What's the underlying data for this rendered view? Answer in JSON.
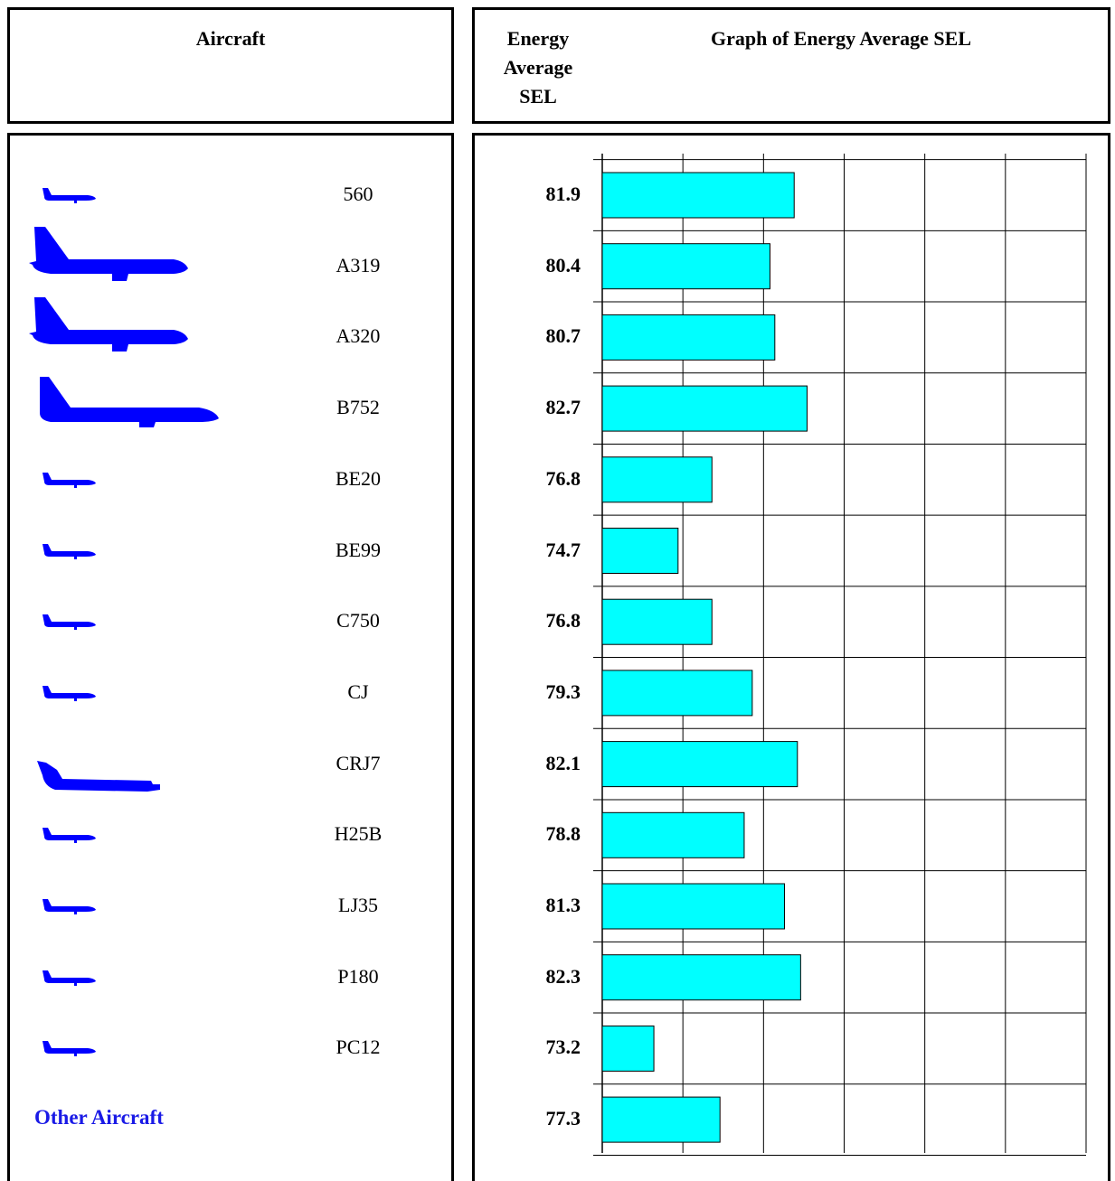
{
  "headers": {
    "aircraft": "Aircraft",
    "energy": [
      "Energy",
      "Average",
      "SEL"
    ],
    "graph": "Graph of Energy Average SEL"
  },
  "other_label": "Other Aircraft",
  "colors": {
    "bar": "#00ffff",
    "plane": "#0000ff",
    "other_label": "#1a1ae6"
  },
  "chart_data": {
    "type": "bar",
    "orientation": "horizontal",
    "title": "Graph of Energy Average SEL",
    "categories": [
      "560",
      "A319",
      "A320",
      "B752",
      "BE20",
      "BE99",
      "C750",
      "CJ",
      "CRJ7",
      "H25B",
      "LJ35",
      "P180",
      "PC12",
      "Other Aircraft"
    ],
    "values": [
      81.9,
      80.4,
      80.7,
      82.7,
      76.8,
      74.7,
      76.8,
      79.3,
      82.1,
      78.8,
      81.3,
      82.3,
      73.2,
      77.3
    ],
    "plane_icons": [
      "small-jet-icon",
      "airliner-icon",
      "airliner-icon",
      "large-airliner-icon",
      "small-jet-icon",
      "small-jet-icon",
      "small-jet-icon",
      "small-jet-icon",
      "regional-jet-icon",
      "small-jet-icon",
      "small-jet-icon",
      "small-jet-icon",
      "small-jet-icon",
      ""
    ],
    "xlim": [
      70,
      100
    ],
    "grid": true,
    "legend": "none"
  }
}
